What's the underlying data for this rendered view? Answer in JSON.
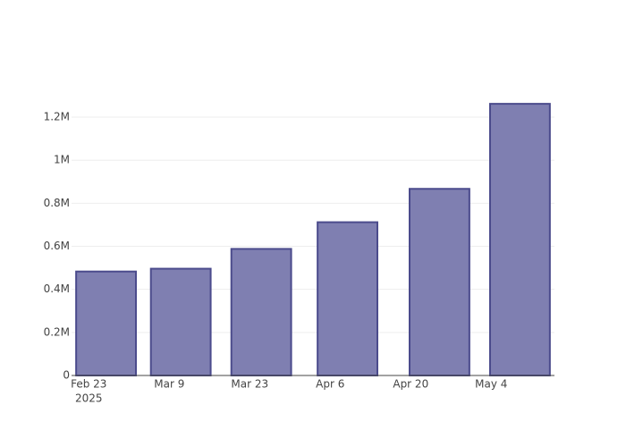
{
  "chart_data": {
    "type": "bar",
    "x": [
      "2025-02-26",
      "2025-03-11",
      "2025-03-25",
      "2025-04-09",
      "2025-04-25",
      "2025-05-09"
    ],
    "values": [
      483000,
      496000,
      588000,
      712000,
      867000,
      1262000
    ],
    "color": "#7f7fb1",
    "line_color": "#4b4b8c",
    "xlim": [
      "2025-02-20",
      "2025-05-15"
    ],
    "xticks": [
      {
        "value": "2025-02-23",
        "label": "Feb 23"
      },
      {
        "value": "2025-03-09",
        "label": "Mar 9"
      },
      {
        "value": "2025-03-23",
        "label": "Mar 23"
      },
      {
        "value": "2025-04-06",
        "label": "Apr 6"
      },
      {
        "value": "2025-04-20",
        "label": "Apr 20"
      },
      {
        "value": "2025-05-04",
        "label": "May 4"
      }
    ],
    "x_year_label": "2025",
    "ylim": [
      0,
      1329000
    ],
    "yticks": [
      0,
      {
        "value": 200000,
        "label": "0.2M"
      },
      {
        "value": 400000,
        "label": "0.4M"
      },
      {
        "value": 600000,
        "label": "0.6M"
      },
      {
        "value": 800000,
        "label": "0.8M"
      },
      {
        "value": 1000000,
        "label": "1M"
      },
      {
        "value": 1200000,
        "label": "1.2M"
      }
    ],
    "grid": true
  }
}
